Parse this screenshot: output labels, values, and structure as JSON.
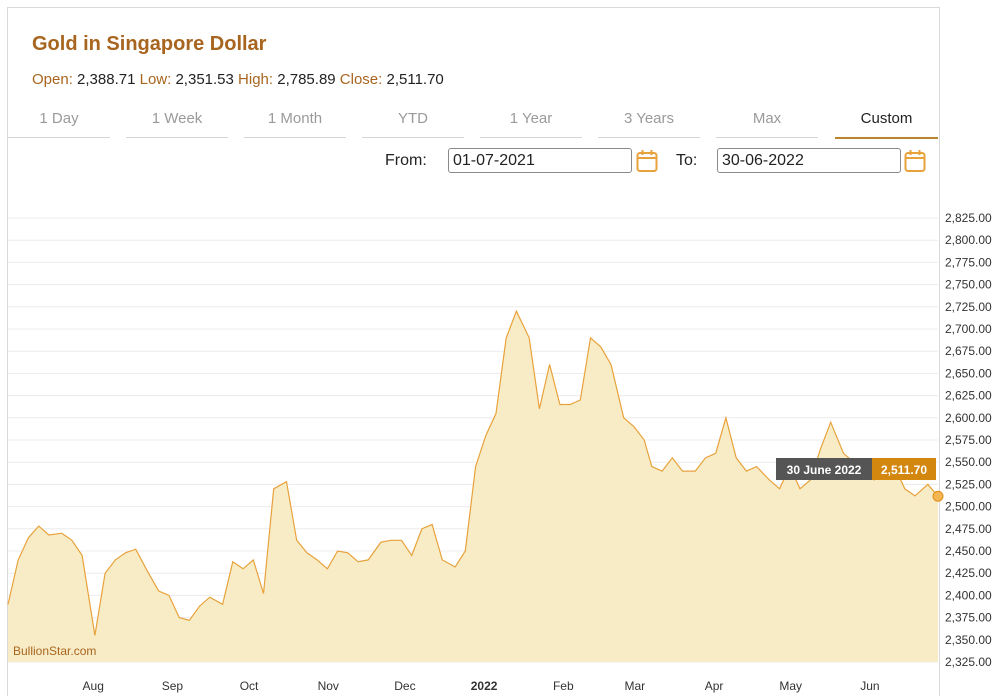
{
  "header": {
    "title": "Gold in Singapore Dollar",
    "open_label": "Open:",
    "open_value": "2,388.71",
    "low_label": "Low:",
    "low_value": "2,351.53",
    "high_label": "High:",
    "high_value": "2,785.89",
    "close_label": "Close:",
    "close_value": "2,511.70"
  },
  "tabs": [
    {
      "label": "1 Day"
    },
    {
      "label": "1 Week"
    },
    {
      "label": "1 Month"
    },
    {
      "label": "YTD"
    },
    {
      "label": "1 Year"
    },
    {
      "label": "3 Years"
    },
    {
      "label": "Max"
    },
    {
      "label": "Custom"
    }
  ],
  "active_tab": "Custom",
  "range": {
    "from_label": "From:",
    "from_value": "01-07-2021",
    "to_label": "To:",
    "to_value": "30-06-2022"
  },
  "tooltip": {
    "date": "30 June 2022",
    "value": "2,511.70"
  },
  "credit": "BullionStar.com",
  "colors": {
    "accent": "#a8651f",
    "line": "#e8a23c",
    "fill": "#f7ecc6",
    "badge": "#d4870e",
    "tooltip_bg": "#555555"
  },
  "chart_data": {
    "type": "area",
    "ylim": [
      2325,
      2837.5
    ],
    "y_ticks": [
      "2,325.00",
      "2,350.00",
      "2,375.00",
      "2,400.00",
      "2,425.00",
      "2,450.00",
      "2,475.00",
      "2,500.00",
      "2,525.00",
      "2,550.00",
      "2,575.00",
      "2,600.00",
      "2,625.00",
      "2,650.00",
      "2,675.00",
      "2,700.00",
      "2,725.00",
      "2,750.00",
      "2,775.00",
      "2,800.00",
      "2,825.00"
    ],
    "x_ticks": [
      {
        "label": "Aug",
        "date": "2021-08-01",
        "bold": false
      },
      {
        "label": "Sep",
        "date": "2021-09-01",
        "bold": false
      },
      {
        "label": "Oct",
        "date": "2021-10-01",
        "bold": false
      },
      {
        "label": "Nov",
        "date": "2021-11-01",
        "bold": false
      },
      {
        "label": "Dec",
        "date": "2021-12-01",
        "bold": false
      },
      {
        "label": "2022",
        "date": "2022-01-01",
        "bold": true
      },
      {
        "label": "Feb",
        "date": "2022-02-01",
        "bold": false
      },
      {
        "label": "Mar",
        "date": "2022-03-01",
        "bold": false
      },
      {
        "label": "Apr",
        "date": "2022-04-01",
        "bold": false
      },
      {
        "label": "May",
        "date": "2022-05-01",
        "bold": false
      },
      {
        "label": "Jun",
        "date": "2022-06-01",
        "bold": false
      }
    ],
    "x_start": "2021-07-01",
    "x_end": "2022-06-30",
    "series": [
      {
        "dates": [
          "2021-07-01",
          "2021-07-05",
          "2021-07-09",
          "2021-07-13",
          "2021-07-17",
          "2021-07-22",
          "2021-07-26",
          "2021-07-30",
          "2021-08-04",
          "2021-08-08",
          "2021-08-12",
          "2021-08-16",
          "2021-08-20",
          "2021-08-25",
          "2021-08-29",
          "2021-09-02",
          "2021-09-06",
          "2021-09-10",
          "2021-09-14",
          "2021-09-18",
          "2021-09-23",
          "2021-09-27",
          "2021-10-01",
          "2021-10-05",
          "2021-10-09",
          "2021-10-13",
          "2021-10-18",
          "2021-10-22",
          "2021-10-26",
          "2021-10-30",
          "2021-11-03",
          "2021-11-07",
          "2021-11-11",
          "2021-11-15",
          "2021-11-19",
          "2021-11-24",
          "2021-11-28",
          "2021-12-02",
          "2021-12-06",
          "2021-12-10",
          "2021-12-14",
          "2021-12-18",
          "2021-12-23",
          "2021-12-27",
          "2021-12-31",
          "2022-01-04",
          "2022-01-08",
          "2022-01-12",
          "2022-01-16",
          "2022-01-21",
          "2022-01-25",
          "2022-01-29",
          "2022-02-02",
          "2022-02-06",
          "2022-02-10",
          "2022-02-14",
          "2022-02-18",
          "2022-02-22",
          "2022-02-27",
          "2022-03-03",
          "2022-03-07",
          "2022-03-08",
          "2022-03-10",
          "2022-03-14",
          "2022-03-18",
          "2022-03-22",
          "2022-03-27",
          "2022-03-31",
          "2022-04-04",
          "2022-04-08",
          "2022-04-12",
          "2022-04-16",
          "2022-04-20",
          "2022-04-25",
          "2022-04-29",
          "2022-05-03",
          "2022-05-07",
          "2022-05-11",
          "2022-05-15",
          "2022-05-19",
          "2022-05-24",
          "2022-05-28",
          "2022-06-01",
          "2022-06-05",
          "2022-06-09",
          "2022-06-13",
          "2022-06-17",
          "2022-06-21",
          "2022-06-26",
          "2022-06-30"
        ],
        "values": [
          2390,
          2440,
          2465,
          2478,
          2468,
          2470,
          2462,
          2445,
          2355,
          2425,
          2440,
          2448,
          2452,
          2425,
          2405,
          2400,
          2375,
          2372,
          2388,
          2398,
          2390,
          2438,
          2430,
          2440,
          2402,
          2520,
          2528,
          2462,
          2448,
          2440,
          2430,
          2450,
          2448,
          2438,
          2440,
          2460,
          2462,
          2462,
          2445,
          2475,
          2480,
          2440,
          2432,
          2450,
          2545,
          2580,
          2605,
          2690,
          2720,
          2690,
          2610,
          2660,
          2615,
          2615,
          2620,
          2690,
          2680,
          2660,
          2600,
          2590,
          2575,
          2565,
          2545,
          2540,
          2555,
          2540,
          2540,
          2555,
          2560,
          2600,
          2555,
          2540,
          2545,
          2530,
          2520,
          2545,
          2520,
          2530,
          2565,
          2595,
          2560,
          2550,
          2540,
          2530,
          2550,
          2545,
          2520,
          2512,
          2525,
          2511.7
        ]
      }
    ]
  }
}
